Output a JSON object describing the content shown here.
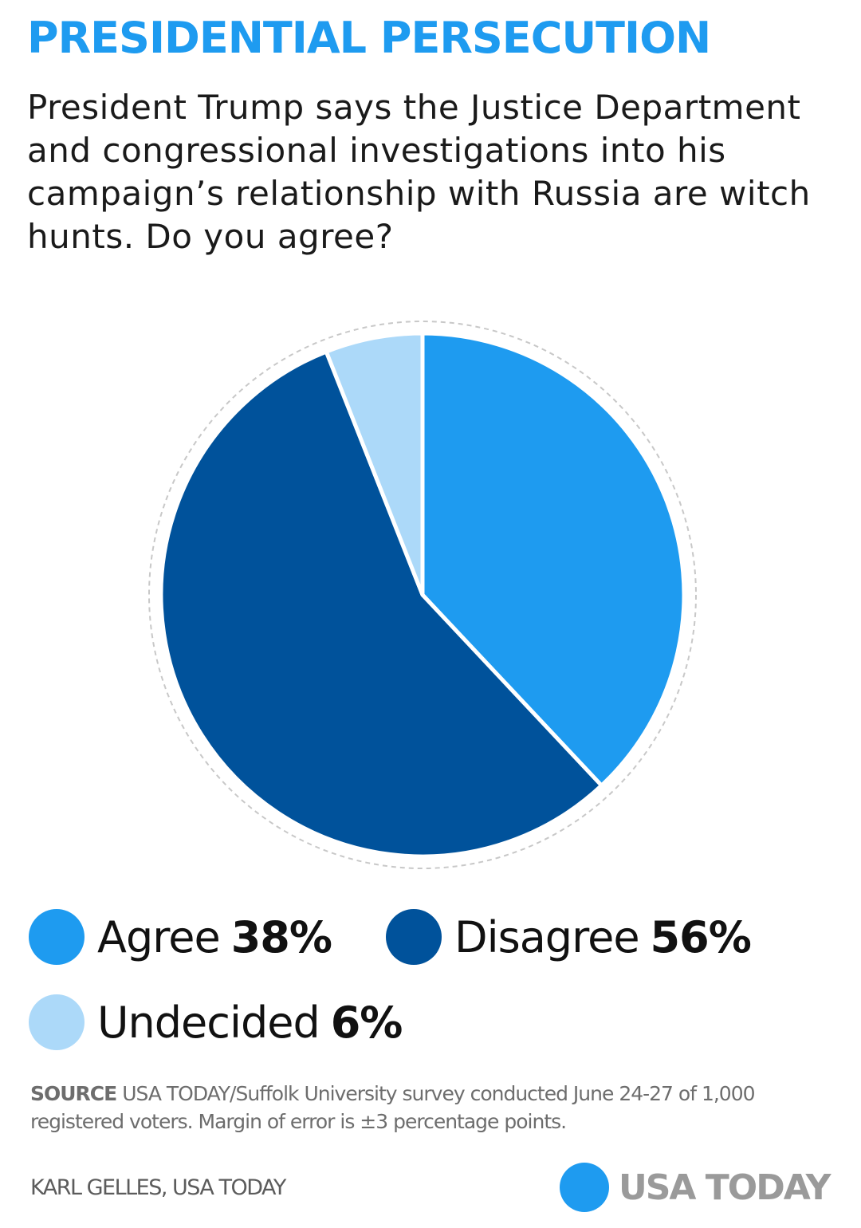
{
  "title": "PRESIDENTIAL PERSECUTION",
  "question": "President Trump says the Justice Department and congressional investigations into his campaign’s relationship with Russia are witch hunts. Do you agree?",
  "chart_data": {
    "type": "pie",
    "categories": [
      "Agree",
      "Disagree",
      "Undecided"
    ],
    "values": [
      38,
      56,
      6
    ],
    "value_labels": [
      "38%",
      "56%",
      "6%"
    ],
    "colors": [
      "#1e9bf0",
      "#00529b",
      "#acd9f9"
    ],
    "start_angle": "12 o'clock, clockwise",
    "legend_placement": "bottom"
  },
  "legend": [
    {
      "label": "Agree",
      "value": "38%",
      "color": "#1e9bf0"
    },
    {
      "label": "Disagree",
      "value": "56%",
      "color": "#00529b"
    },
    {
      "label": "Undecided",
      "value": "6%",
      "color": "#acd9f9"
    }
  ],
  "source": {
    "label": "SOURCE",
    "text": "USA TODAY/Suffolk University survey conducted June 24-27 of 1,000 registered voters. Margin of error is ±3 percentage points."
  },
  "credit": "KARL GELLES, USA TODAY",
  "brand": {
    "name": "USA TODAY",
    "logo_icon": "usa-today-circle-logo-icon",
    "logo_color": "#1e9bf0"
  }
}
